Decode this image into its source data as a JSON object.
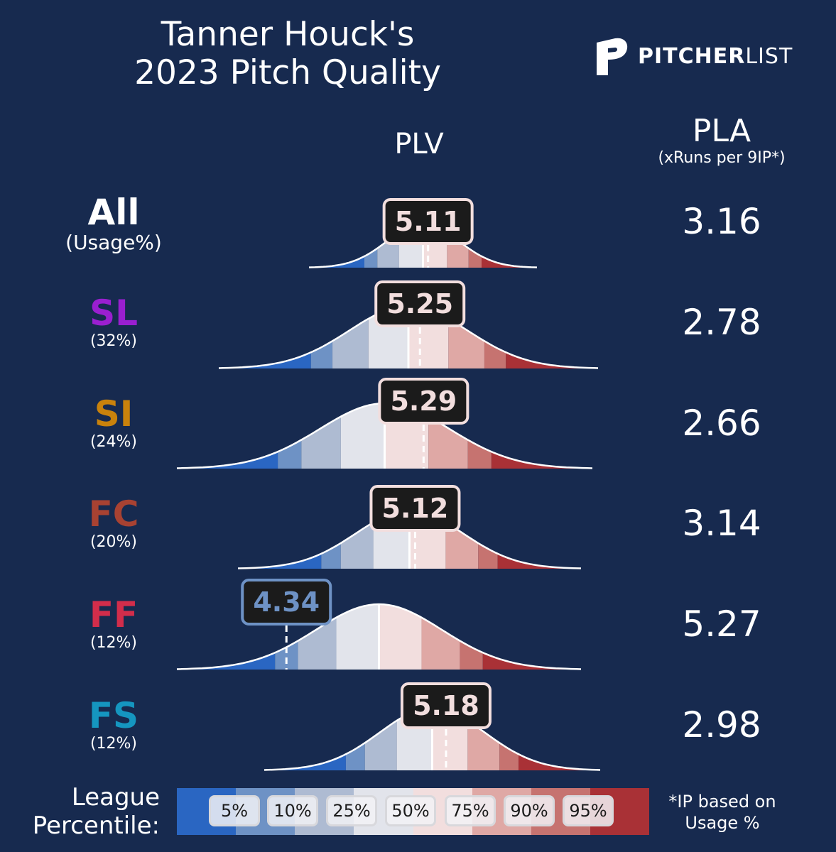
{
  "title": {
    "line1": "Tanner Houck's",
    "line2": "2023 Pitch Quality"
  },
  "logo": {
    "bold": "PITCHER",
    "light": "LIST"
  },
  "columns": {
    "plv": "PLV",
    "pla": "PLA",
    "pla_sub": "(xRuns per 9IP*)"
  },
  "colors": {
    "background": "#172a4f",
    "SL": "#9a1fd0",
    "SI": "#c9820c",
    "FC": "#a84232",
    "FF": "#d22d4b",
    "FS": "#1596c0",
    "All": "#ffffff",
    "percentile_bands": [
      "#2a66c2",
      "#6e92c5",
      "#aebbd2",
      "#e2e4eb",
      "#f2dede",
      "#dfa8a5",
      "#c67370",
      "#a93136"
    ]
  },
  "chart_data": {
    "type": "area",
    "description_axis": "PLV distribution per pitch type, shaded by league percentile bands",
    "percentile_labels": [
      "5%",
      "10%",
      "25%",
      "50%",
      "75%",
      "90%",
      "95%"
    ],
    "rows": [
      {
        "code": "All",
        "usage": "(Usage%)",
        "plv": "5.11",
        "pla": "3.16",
        "mean": 5.08,
        "sd": 0.21,
        "plv_value": 5.11
      },
      {
        "code": "SL",
        "usage": "(32%)",
        "plv": "5.25",
        "pla": "2.78",
        "mean": 5.18,
        "sd": 0.36,
        "plv_value": 5.25
      },
      {
        "code": "SI",
        "usage": "(24%)",
        "plv": "5.29",
        "pla": "2.66",
        "mean": 5.05,
        "sd": 0.4,
        "plv_value": 5.29
      },
      {
        "code": "FC",
        "usage": "(20%)",
        "plv": "5.12",
        "pla": "3.14",
        "mean": 5.08,
        "sd": 0.38,
        "plv_value": 5.12
      },
      {
        "code": "FF",
        "usage": "(12%)",
        "plv": "4.34",
        "pla": "5.27",
        "mean": 4.97,
        "sd": 0.43,
        "plv_value": 4.34
      },
      {
        "code": "FS",
        "usage": "(12%)",
        "plv": "5.18",
        "pla": "2.98",
        "mean": 5.08,
        "sd": 0.38,
        "plv_value": 5.18
      }
    ]
  },
  "legend": {
    "label_line1": "League",
    "label_line2": "Percentile:",
    "chips": [
      "5%",
      "10%",
      "25%",
      "50%",
      "75%",
      "90%",
      "95%"
    ]
  },
  "footnote": {
    "line1": "*IP based on",
    "line2": "Usage %"
  }
}
